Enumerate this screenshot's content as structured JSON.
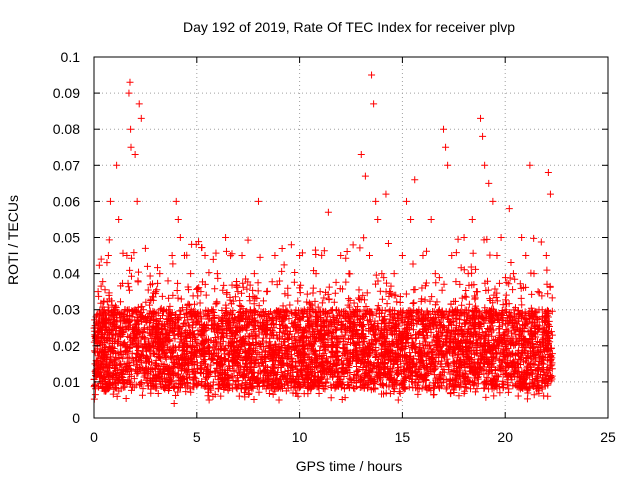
{
  "chart_data": {
    "type": "scatter",
    "title": "Day 192 of 2019, Rate Of TEC Index for receiver plvp",
    "xlabel": "GPS time / hours",
    "ylabel": "ROTI / TECUs",
    "xlim": [
      0,
      25
    ],
    "ylim": [
      0,
      0.1
    ],
    "x_ticks": [
      0,
      5,
      10,
      15,
      20,
      25
    ],
    "y_ticks": [
      0,
      0.01,
      0.02,
      0.03,
      0.04,
      0.05,
      0.06,
      0.07,
      0.08,
      0.09,
      0.1
    ],
    "x_tick_labels": [
      "0",
      "5",
      "10",
      "15",
      "20",
      "25"
    ],
    "y_tick_labels": [
      "0",
      "0.01",
      "0.02",
      "0.03",
      "0.04",
      "0.05",
      "0.06",
      "0.07",
      "0.08",
      "0.09",
      "0.1"
    ],
    "grid": true,
    "marker": "plus",
    "color": "#ff0000",
    "series": [
      {
        "x": [
          0.05,
          0.1,
          0.15,
          0.2,
          0.3,
          0.35,
          0.45,
          0.5,
          0.6,
          0.7,
          0.8,
          0.9,
          1.0,
          1.1,
          1.2,
          1.3,
          1.4,
          1.5,
          1.6,
          1.7,
          1.75,
          1.78,
          1.8,
          1.9,
          2.0,
          2.1,
          2.2,
          2.3,
          2.4,
          2.45,
          2.5,
          2.6,
          2.7,
          2.8,
          2.9,
          3.0,
          3.1,
          3.2,
          3.3,
          3.4,
          3.5,
          3.6,
          3.7,
          3.8,
          3.9,
          4.0,
          4.1,
          4.2,
          4.3,
          4.4,
          4.5,
          4.6,
          4.7,
          4.8,
          4.9,
          5.0,
          5.2,
          5.4,
          5.6,
          5.8,
          6.0,
          6.2,
          6.4,
          6.6,
          6.8,
          7.0,
          7.2,
          7.4,
          7.6,
          7.8,
          8.0,
          8.2,
          8.4,
          8.6,
          8.8,
          9.0,
          9.2,
          9.4,
          9.6,
          9.8,
          10.0,
          10.2,
          10.4,
          10.6,
          10.8,
          11.0,
          11.2,
          11.4,
          11.6,
          11.8,
          12.0,
          12.2,
          12.4,
          12.6,
          12.8,
          13.0,
          13.2,
          13.4,
          13.5,
          13.6,
          13.7,
          13.8,
          14.0,
          14.2,
          14.4,
          14.6,
          14.8,
          15.0,
          15.2,
          15.4,
          15.6,
          15.8,
          16.0,
          16.2,
          16.4,
          16.6,
          16.8,
          17.0,
          17.1,
          17.2,
          17.4,
          17.6,
          17.8,
          18.0,
          18.2,
          18.4,
          18.6,
          18.8,
          18.9,
          19.0,
          19.2,
          19.4,
          19.6,
          19.8,
          20.0,
          20.2,
          20.4,
          20.6,
          20.8,
          21.0,
          21.2,
          21.4,
          21.6,
          21.8,
          22.0,
          22.1,
          22.2
        ],
        "y": [
          0.015,
          0.028,
          0.012,
          0.035,
          0.02,
          0.044,
          0.018,
          0.03,
          0.025,
          0.045,
          0.06,
          0.022,
          0.03,
          0.07,
          0.055,
          0.02,
          0.025,
          0.03,
          0.045,
          0.09,
          0.093,
          0.08,
          0.075,
          0.022,
          0.073,
          0.06,
          0.087,
          0.083,
          0.03,
          0.025,
          0.047,
          0.042,
          0.02,
          0.028,
          0.018,
          0.035,
          0.025,
          0.04,
          0.015,
          0.03,
          0.022,
          0.038,
          0.01,
          0.045,
          0.004,
          0.06,
          0.055,
          0.05,
          0.02,
          0.045,
          0.03,
          0.015,
          0.04,
          0.025,
          0.018,
          0.02,
          0.035,
          0.045,
          0.005,
          0.03,
          0.04,
          0.015,
          0.05,
          0.025,
          0.02,
          0.035,
          0.045,
          0.018,
          0.03,
          0.04,
          0.06,
          0.025,
          0.035,
          0.02,
          0.045,
          0.005,
          0.03,
          0.022,
          0.048,
          0.025,
          0.045,
          0.028,
          0.03,
          0.02,
          0.04,
          0.035,
          0.025,
          0.057,
          0.02,
          0.03,
          0.045,
          0.025,
          0.04,
          0.018,
          0.03,
          0.073,
          0.067,
          0.045,
          0.095,
          0.087,
          0.06,
          0.055,
          0.04,
          0.062,
          0.03,
          0.04,
          0.005,
          0.045,
          0.06,
          0.055,
          0.066,
          0.03,
          0.045,
          0.025,
          0.055,
          0.04,
          0.03,
          0.08,
          0.075,
          0.07,
          0.045,
          0.03,
          0.02,
          0.05,
          0.04,
          0.055,
          0.035,
          0.083,
          0.078,
          0.07,
          0.065,
          0.06,
          0.045,
          0.05,
          0.03,
          0.058,
          0.04,
          0.025,
          0.05,
          0.045,
          0.07,
          0.04,
          0.035,
          0.03,
          0.045,
          0.068,
          0.062
        ]
      }
    ]
  }
}
